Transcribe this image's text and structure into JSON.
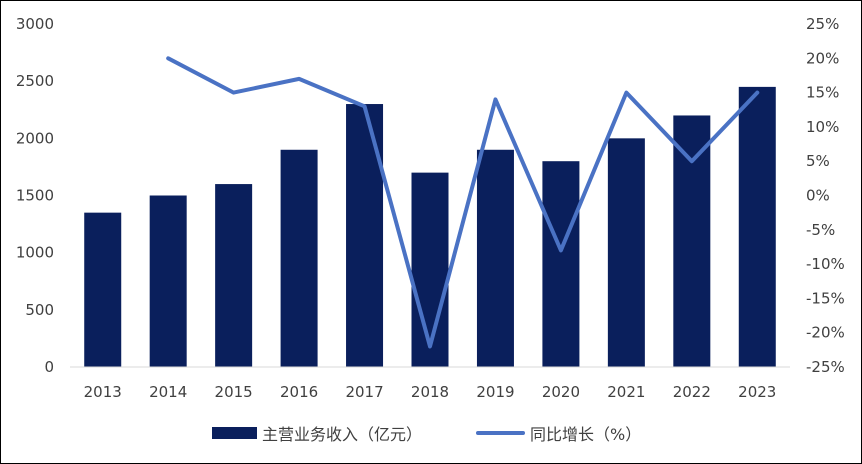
{
  "chart_data": {
    "type": "bar",
    "categories": [
      "2013",
      "2014",
      "2015",
      "2016",
      "2017",
      "2018",
      "2019",
      "2020",
      "2021",
      "2022",
      "2023"
    ],
    "series": [
      {
        "name": "主营业务收入（亿元）",
        "type": "bar",
        "axis": "left",
        "color": "#0a1f5c",
        "values": [
          1350,
          1500,
          1600,
          1900,
          2300,
          1700,
          1900,
          1800,
          2000,
          2200,
          2450
        ]
      },
      {
        "name": "同比增长（%）",
        "type": "line",
        "axis": "right",
        "color": "#4a72c4",
        "values": [
          null,
          20,
          15,
          17,
          13,
          -22,
          14,
          -8,
          15,
          5,
          15
        ]
      }
    ],
    "y_left": {
      "range": [
        0,
        3000
      ],
      "ticks": [
        0,
        500,
        1000,
        1500,
        2000,
        2500,
        3000
      ],
      "tick_labels": [
        "0",
        "500",
        "1000",
        "1500",
        "2000",
        "2500",
        "3000"
      ]
    },
    "y_right": {
      "range": [
        -25,
        25
      ],
      "ticks": [
        -25,
        -20,
        -15,
        -10,
        -5,
        0,
        5,
        10,
        15,
        20,
        25
      ],
      "tick_labels": [
        "-25%",
        "-20%",
        "-15%",
        "-10%",
        "-5%",
        "0%",
        "5%",
        "10%",
        "15%",
        "20%",
        "25%"
      ]
    },
    "grid": false,
    "legend_position": "bottom"
  }
}
